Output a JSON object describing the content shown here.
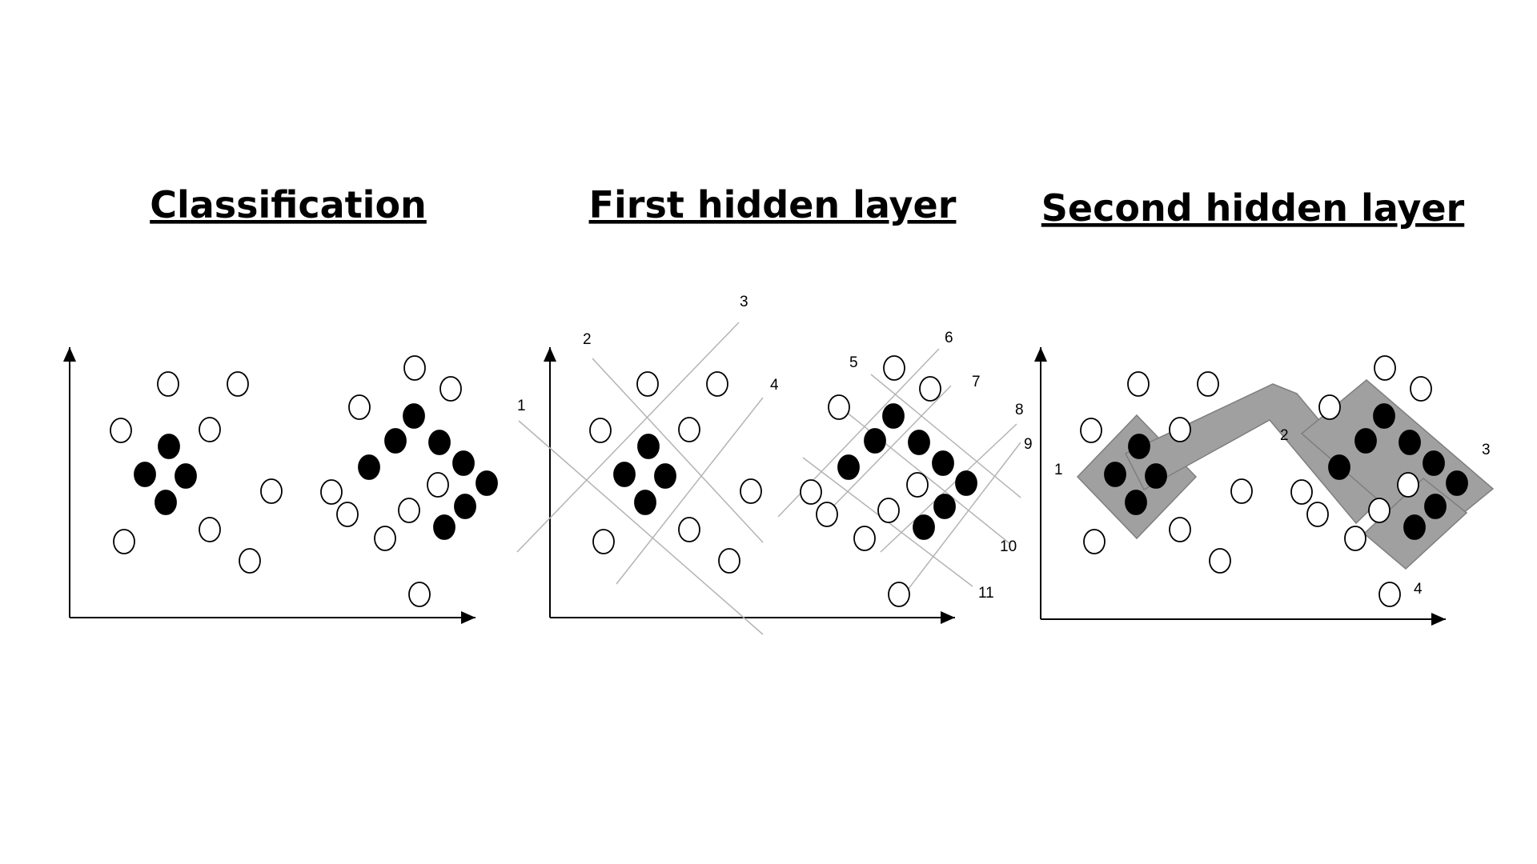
{
  "panels": [
    {
      "title": "Classification",
      "labels": []
    },
    {
      "title": "First hidden layer",
      "labels": [
        "1",
        "2",
        "3",
        "4",
        "5",
        "6",
        "7",
        "8",
        "9",
        "10",
        "11"
      ]
    },
    {
      "title": "Second hidden layer",
      "labels": [
        "1",
        "2",
        "3",
        "4"
      ]
    }
  ],
  "colors": {
    "filled_point": "#000000",
    "hollow_point": "#ffffff",
    "line": "#b4b4b4",
    "region": "#a0a0a0",
    "axis": "#000000"
  }
}
